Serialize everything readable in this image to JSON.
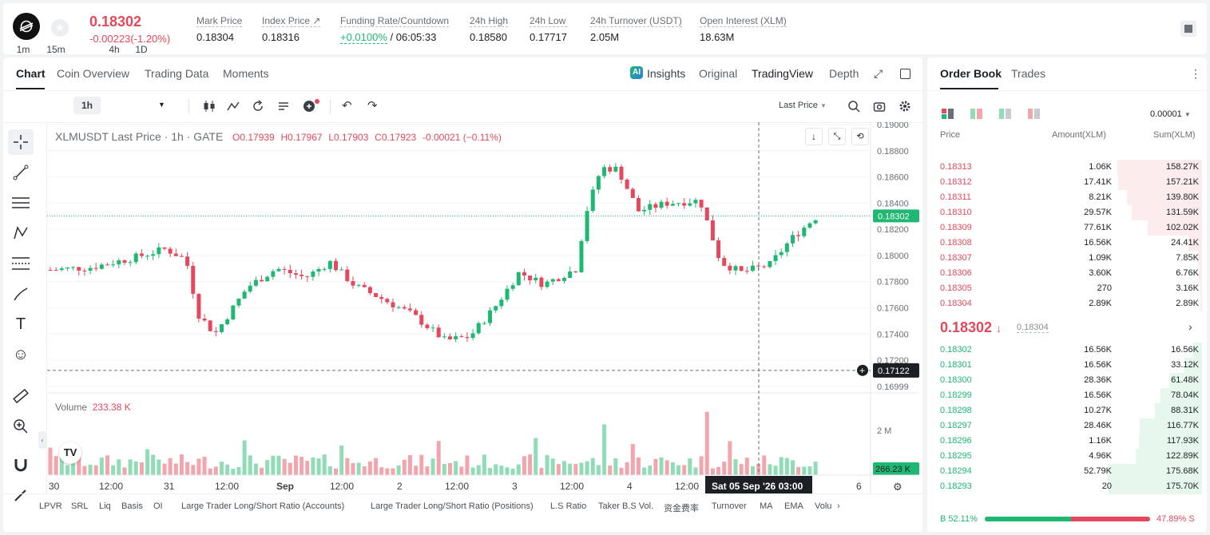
{
  "header": {
    "last_price": "0.18302",
    "change": "-0.00223(-1.20%)",
    "stats": [
      {
        "label": "Mark Price",
        "value": "0.18304"
      },
      {
        "label": "Index Price ↗",
        "value": "0.18316"
      },
      {
        "label": "Funding Rate/Countdown",
        "value_a": "+0.0100%",
        "value_b": " / 06:05:33"
      },
      {
        "label": "24h High",
        "value": "0.18580"
      },
      {
        "label": "24h Low",
        "value": "0.17717"
      },
      {
        "label": "24h Turnover (USDT)",
        "value": "2.05M"
      },
      {
        "label": "Open Interest (XLM)",
        "value": "18.63M"
      }
    ]
  },
  "tabs": [
    "Chart",
    "Coin Overview",
    "Trading Data",
    "Moments"
  ],
  "view_tabs": [
    "Insights",
    "Original",
    "TradingView",
    "Depth"
  ],
  "timeframes": [
    "1m",
    "15m",
    "1h",
    "4h",
    "1D"
  ],
  "price_type": "Last Price",
  "legend": {
    "symbol": "XLMUSDT Last Price · 1h · GATE",
    "o": "O0.17939",
    "h": "H0.17967",
    "l": "L0.17903",
    "c": "C0.17923",
    "chg": "-0.00021 (−0.11%)"
  },
  "volume": {
    "label": "Volume",
    "value": "233.38 K",
    "axis": "2 M",
    "current": "266.23 K"
  },
  "price_axis": [
    "0.19000",
    "0.18800",
    "0.18600",
    "0.18400",
    "0.18200",
    "0.18000",
    "0.17800",
    "0.17600",
    "0.17400",
    "0.17200",
    "0.16999"
  ],
  "price_tag": "0.18302",
  "cross_tag": "0.17122",
  "time_axis": [
    "30",
    "12:00",
    "31",
    "12:00",
    "Sep",
    "12:00",
    "2",
    "12:00",
    "3",
    "12:00",
    "4",
    "12:00",
    "5",
    "6"
  ],
  "cross_time": "Sat 05 Sep '26   03:00",
  "indicators": [
    "LPVR",
    "SRL",
    "Liq",
    "Basis",
    "OI",
    "Large Trader Long/Short Ratio (Accounts)",
    "Large Trader Long/Short Ratio (Positions)",
    "L.S Ratio",
    "Taker B.S Vol.",
    "资金费率",
    "Turnover",
    "MA",
    "EMA",
    "Volu"
  ],
  "orderbook": {
    "tabs": [
      "Order Book",
      "Trades"
    ],
    "precision": "0.00001",
    "cols": [
      "Price",
      "Amount(XLM)",
      "Sum(XLM)"
    ],
    "asks": [
      [
        "0.18313",
        "1.06K",
        "158.27K",
        0.9
      ],
      [
        "0.18312",
        "17.41K",
        "157.21K",
        0.89
      ],
      [
        "0.18311",
        "8.21K",
        "139.80K",
        0.8
      ],
      [
        "0.18310",
        "29.57K",
        "131.59K",
        0.75
      ],
      [
        "0.18309",
        "77.61K",
        "102.02K",
        0.58
      ],
      [
        "0.18308",
        "16.56K",
        "24.41K",
        0.14
      ],
      [
        "0.18307",
        "1.09K",
        "7.85K",
        0.045
      ],
      [
        "0.18306",
        "3.60K",
        "6.76K",
        0.038
      ],
      [
        "0.18305",
        "270",
        "3.16K",
        0.018
      ],
      [
        "0.18304",
        "2.89K",
        "2.89K",
        0.016
      ]
    ],
    "mid_price": "0.18302",
    "mid_arrow": "↓",
    "mid_mark": "0.18304",
    "bids": [
      [
        "0.18302",
        "16.56K",
        "16.56K",
        0.09
      ],
      [
        "0.18301",
        "16.56K",
        "33.12K",
        0.19
      ],
      [
        "0.18300",
        "28.36K",
        "61.48K",
        0.35
      ],
      [
        "0.18299",
        "16.56K",
        "78.04K",
        0.44
      ],
      [
        "0.18298",
        "10.27K",
        "88.31K",
        0.5
      ],
      [
        "0.18297",
        "28.46K",
        "116.77K",
        0.66
      ],
      [
        "0.18296",
        "1.16K",
        "117.93K",
        0.67
      ],
      [
        "0.18295",
        "4.96K",
        "122.89K",
        0.7
      ],
      [
        "0.18294",
        "52.79K",
        "175.68K",
        1.0
      ],
      [
        "0.18293",
        "20",
        "175.70K",
        1.0
      ]
    ],
    "buy_pct": "B 52.11%",
    "sell_pct": "47.89% S",
    "buy_ratio": 0.5211
  },
  "colors": {
    "up": "#1fb873",
    "down": "#e4485c",
    "up_light": "#8fdcb7",
    "down_light": "#f3a5ae"
  }
}
